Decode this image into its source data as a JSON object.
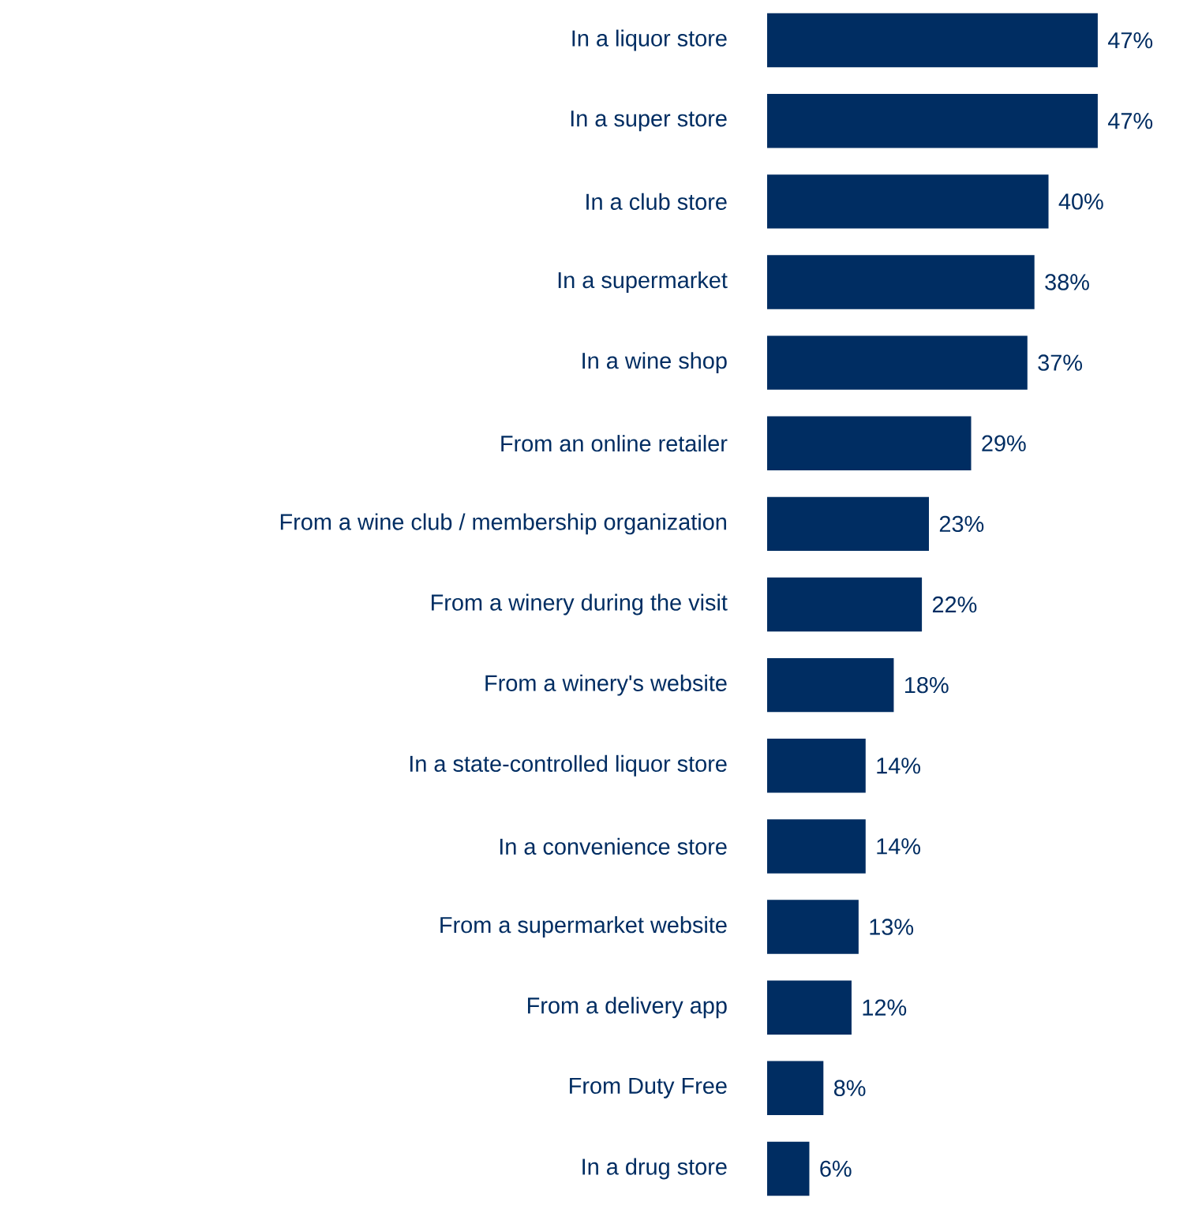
{
  "chart_data": {
    "type": "bar",
    "orientation": "horizontal",
    "color": "#002d62",
    "categories": [
      "In a liquor store",
      "In a super store",
      "In a club store",
      "In a supermarket",
      "In a wine shop",
      "From an online retailer",
      "From a wine club / membership organization",
      "From a winery during the visit",
      "From a winery's website",
      "In a state-controlled liquor store",
      "In a convenience store",
      "From a supermarket website",
      "From a delivery app",
      "From Duty Free",
      "In a drug store"
    ],
    "values": [
      47,
      47,
      40,
      38,
      37,
      29,
      23,
      22,
      18,
      14,
      14,
      13,
      12,
      8,
      6
    ],
    "value_labels": [
      "47%",
      "47%",
      "40%",
      "38%",
      "37%",
      "29%",
      "23%",
      "22%",
      "18%",
      "14%",
      "14%",
      "13%",
      "12%",
      "8%",
      "6%"
    ]
  }
}
